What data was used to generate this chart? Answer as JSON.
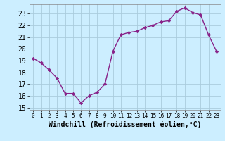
{
  "x": [
    0,
    1,
    2,
    3,
    4,
    5,
    6,
    7,
    8,
    9,
    10,
    11,
    12,
    13,
    14,
    15,
    16,
    17,
    18,
    19,
    20,
    21,
    22,
    23
  ],
  "y": [
    19.2,
    18.8,
    18.2,
    17.5,
    16.2,
    16.2,
    15.4,
    16.0,
    16.3,
    17.0,
    19.8,
    21.2,
    21.4,
    21.5,
    21.8,
    22.0,
    22.3,
    22.4,
    23.2,
    23.5,
    23.1,
    22.9,
    21.2,
    19.8
  ],
  "line_color": "#882288",
  "marker": "D",
  "marker_size": 2.2,
  "background_color": "#cceeff",
  "grid_color": "#aaccdd",
  "xlabel": "Windchill (Refroidissement éolien,°C)",
  "xlabel_fontsize": 7,
  "ylim": [
    14.8,
    23.8
  ],
  "xlim": [
    -0.5,
    23.5
  ],
  "yticks": [
    15,
    16,
    17,
    18,
    19,
    20,
    21,
    22,
    23
  ],
  "xticks": [
    0,
    1,
    2,
    3,
    4,
    5,
    6,
    7,
    8,
    9,
    10,
    11,
    12,
    13,
    14,
    15,
    16,
    17,
    18,
    19,
    20,
    21,
    22,
    23
  ],
  "ytick_fontsize": 7,
  "xtick_fontsize": 5.5,
  "line_width": 1.0
}
